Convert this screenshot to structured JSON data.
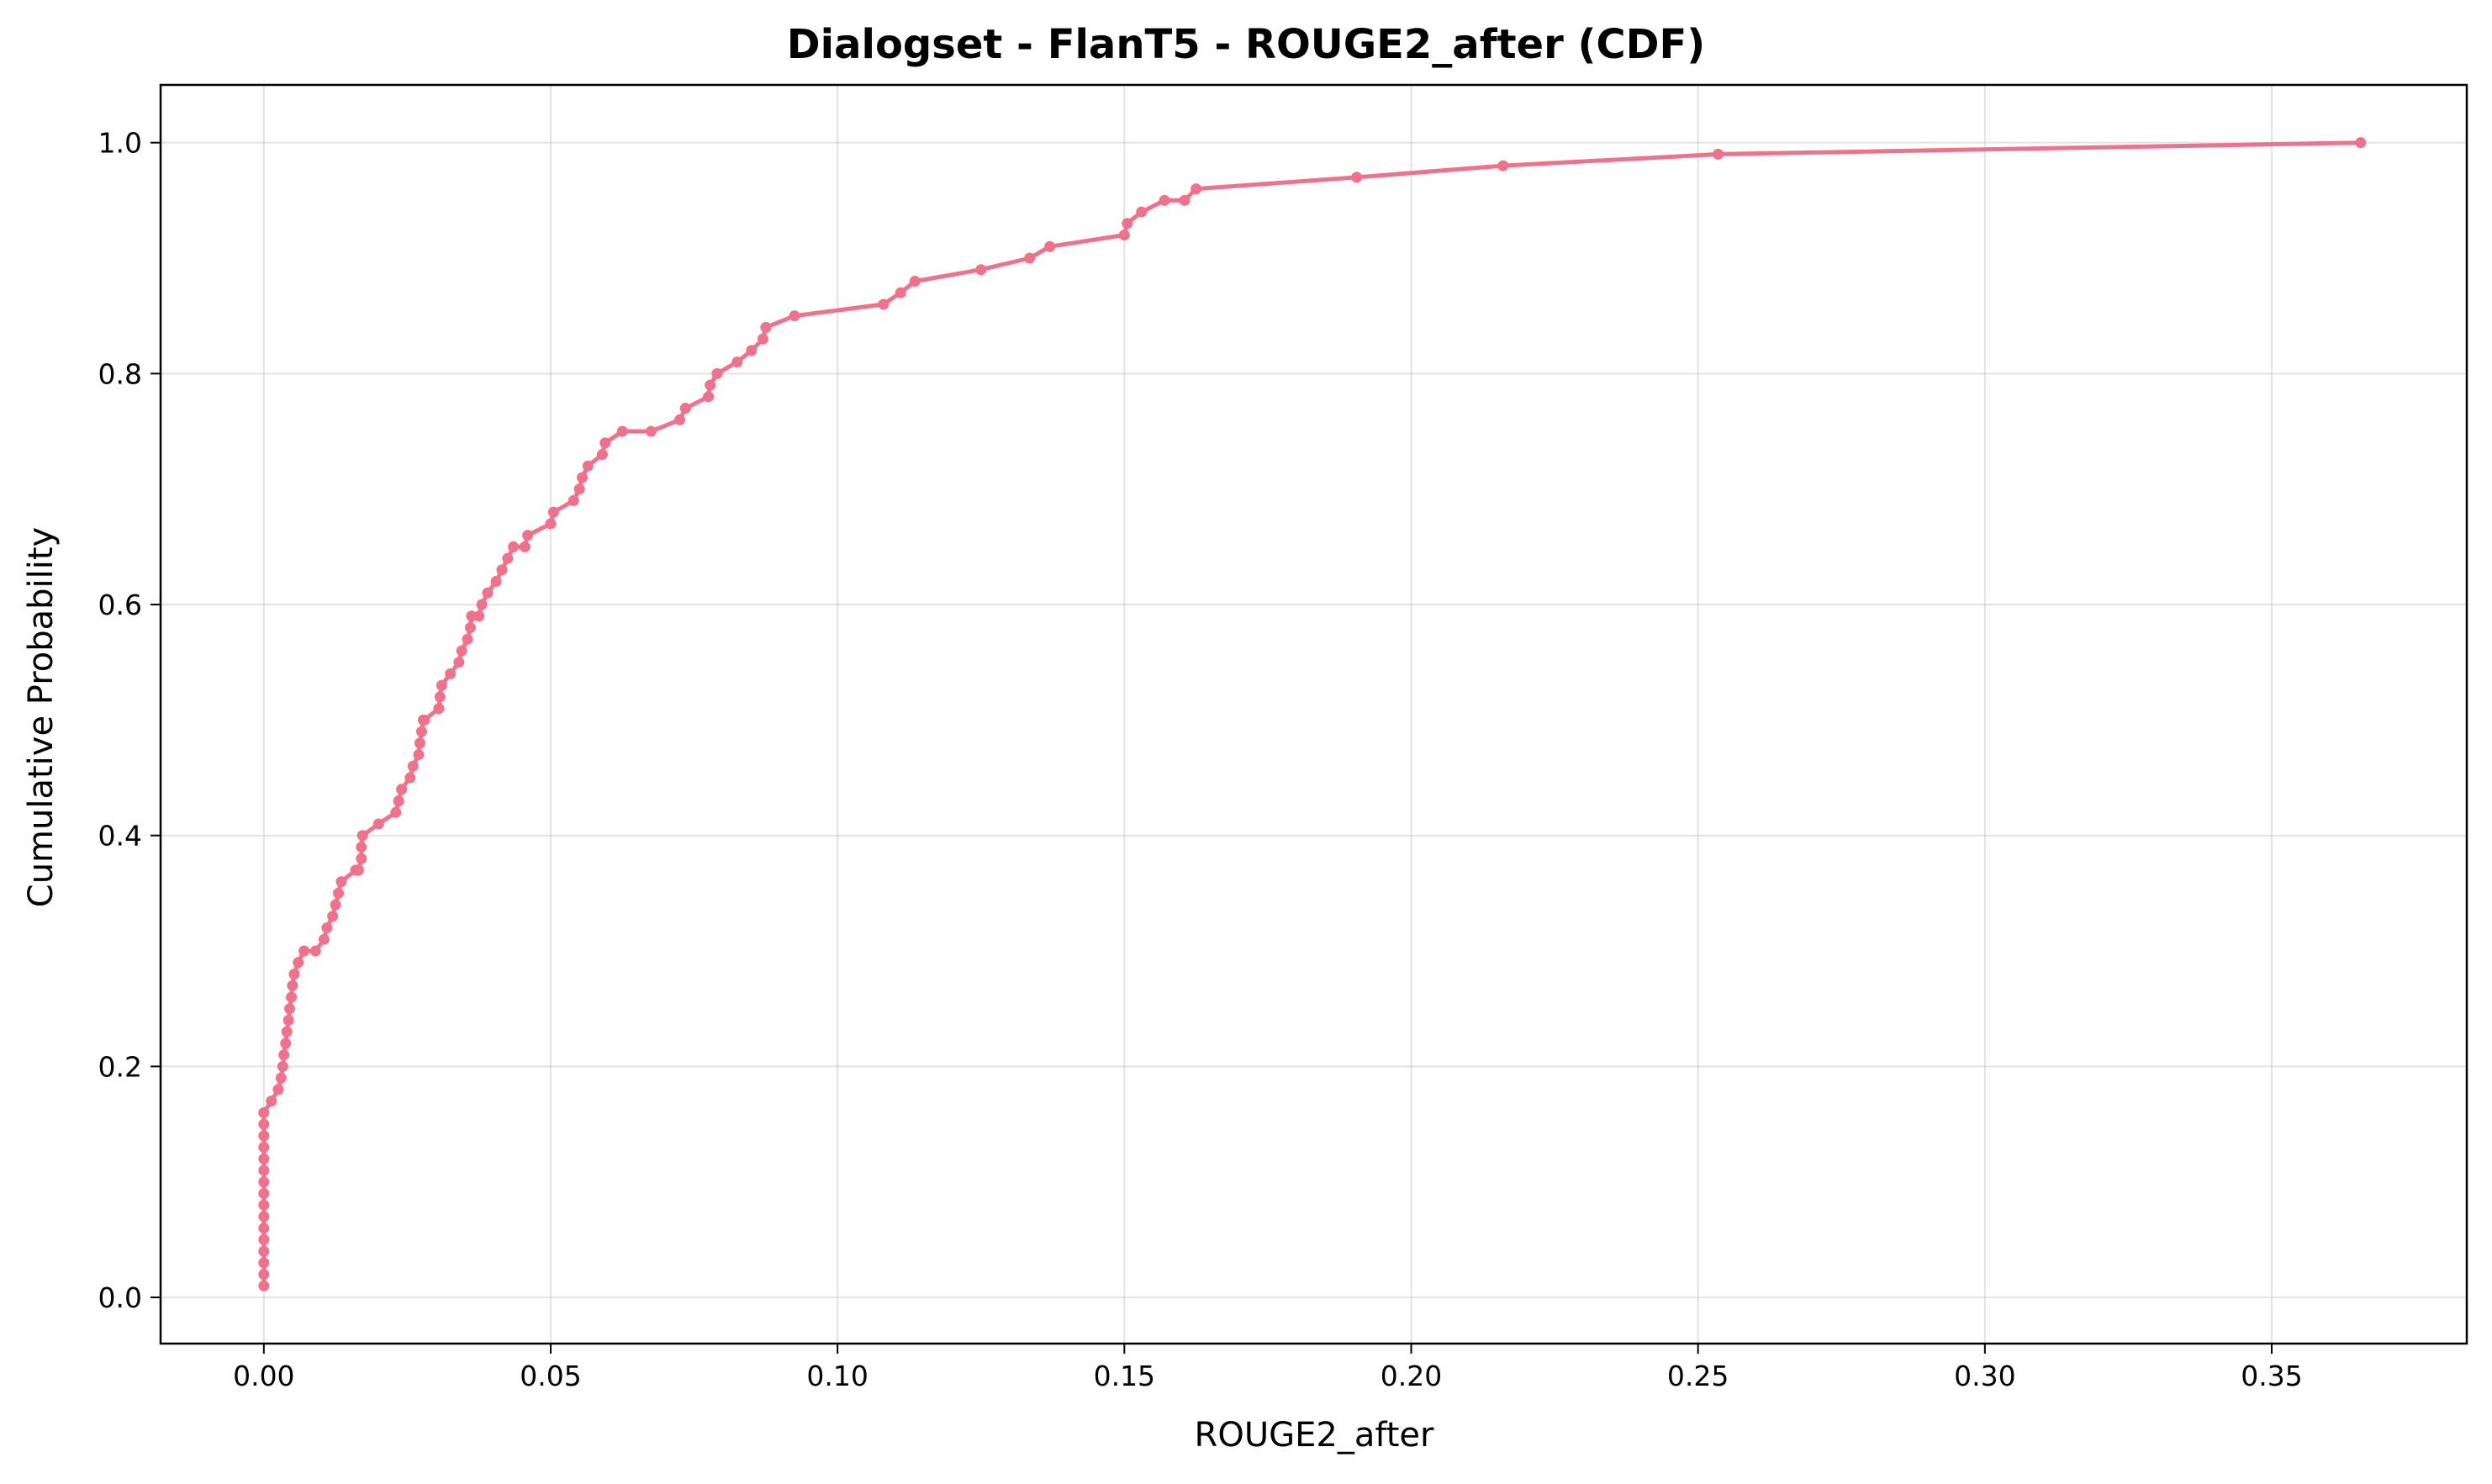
{
  "chart_data": {
    "type": "line",
    "title": "Dialogset - FlanT5 - ROUGE2_after (CDF)",
    "xlabel": "ROUGE2_after",
    "ylabel": "Cumulative Probability",
    "xlim": [
      -0.018,
      0.384
    ],
    "ylim": [
      -0.04,
      1.05
    ],
    "xticks": [
      0.0,
      0.05,
      0.1,
      0.15,
      0.2,
      0.25,
      0.3,
      0.35
    ],
    "xtick_labels": [
      "0.00",
      "0.05",
      "0.10",
      "0.15",
      "0.20",
      "0.25",
      "0.30",
      "0.35"
    ],
    "yticks": [
      0.0,
      0.2,
      0.4,
      0.6,
      0.8,
      1.0
    ],
    "ytick_labels": [
      "0.0",
      "0.2",
      "0.4",
      "0.6",
      "0.8",
      "1.0"
    ],
    "grid": true,
    "color": "#f07189",
    "series": [
      {
        "x": [
          0.0,
          0.0,
          0.0,
          0.0,
          0.0,
          0.0,
          0.0,
          0.0,
          0.0,
          0.0,
          0.0,
          0.0,
          0.0,
          0.0,
          0.0,
          0.0,
          0.0013,
          0.0025,
          0.003,
          0.0033,
          0.0035,
          0.0038,
          0.004,
          0.0043,
          0.0045,
          0.0048,
          0.005,
          0.0053,
          0.006,
          0.007,
          0.009,
          0.0105,
          0.011,
          0.012,
          0.0125,
          0.013,
          0.0135,
          0.016,
          0.0165,
          0.017,
          0.017,
          0.0172,
          0.02,
          0.023,
          0.0235,
          0.024,
          0.0255,
          0.026,
          0.027,
          0.0272,
          0.0275,
          0.0278,
          0.028,
          0.0305,
          0.0307,
          0.031,
          0.0325,
          0.034,
          0.0345,
          0.0355,
          0.036,
          0.0362,
          0.0375,
          0.038,
          0.039,
          0.0405,
          0.0415,
          0.0425,
          0.0435,
          0.0455,
          0.046,
          0.05,
          0.0505,
          0.054,
          0.055,
          0.0555,
          0.0565,
          0.059,
          0.0595,
          0.0625,
          0.0675,
          0.0725,
          0.0735,
          0.0775,
          0.0778,
          0.079,
          0.0825,
          0.085,
          0.087,
          0.0875,
          0.0925,
          0.108,
          0.111,
          0.1135,
          0.125,
          0.1335,
          0.137,
          0.15,
          0.1505,
          0.153,
          0.157,
          0.1605,
          0.1625,
          0.1905,
          0.216,
          0.2535,
          0.3655
        ],
        "y": [
          0.01,
          0.02,
          0.03,
          0.04,
          0.05,
          0.06,
          0.07,
          0.08,
          0.09,
          0.1,
          0.11,
          0.12,
          0.13,
          0.14,
          0.15,
          0.16,
          0.17,
          0.18,
          0.19,
          0.2,
          0.21,
          0.22,
          0.23,
          0.24,
          0.25,
          0.26,
          0.27,
          0.28,
          0.29,
          0.3,
          0.3,
          0.31,
          0.32,
          0.33,
          0.34,
          0.35,
          0.36,
          0.37,
          0.37,
          0.38,
          0.39,
          0.4,
          0.41,
          0.42,
          0.43,
          0.44,
          0.45,
          0.46,
          0.47,
          0.48,
          0.49,
          0.5,
          0.5,
          0.51,
          0.52,
          0.53,
          0.54,
          0.55,
          0.56,
          0.57,
          0.58,
          0.59,
          0.59,
          0.6,
          0.61,
          0.62,
          0.63,
          0.64,
          0.65,
          0.65,
          0.66,
          0.67,
          0.68,
          0.69,
          0.7,
          0.71,
          0.72,
          0.73,
          0.74,
          0.75,
          0.75,
          0.76,
          0.77,
          0.78,
          0.79,
          0.8,
          0.81,
          0.82,
          0.83,
          0.84,
          0.85,
          0.86,
          0.87,
          0.88,
          0.89,
          0.9,
          0.91,
          0.92,
          0.93,
          0.94,
          0.95,
          0.95,
          0.96,
          0.97,
          0.98,
          0.99,
          1.0
        ]
      }
    ]
  }
}
